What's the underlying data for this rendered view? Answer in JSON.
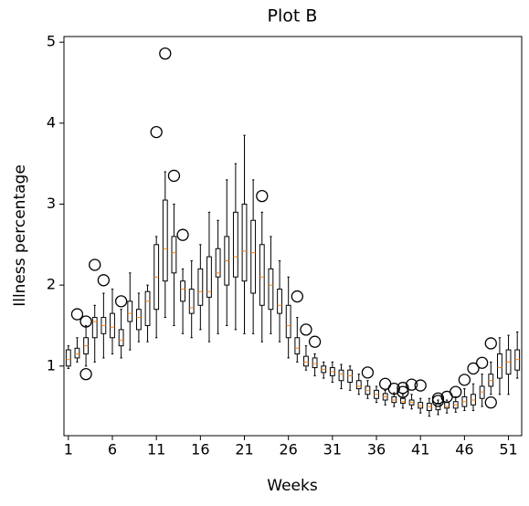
{
  "chart_data": {
    "type": "box",
    "title": "Plot B",
    "x_label": "Weeks",
    "y_label": "Illness percentage",
    "box_color": "#000000",
    "median_color": "#ff7f0e",
    "xlim": [
      0.5,
      52.5
    ],
    "xticks": [
      1,
      6,
      11,
      16,
      21,
      26,
      31,
      36,
      41,
      46,
      51
    ],
    "ylim": [
      0.14,
      5.07
    ],
    "yticks": [
      1,
      2,
      3,
      4,
      5
    ],
    "x": [
      1,
      2,
      3,
      4,
      5,
      6,
      7,
      8,
      9,
      10,
      11,
      12,
      13,
      14,
      15,
      16,
      17,
      18,
      19,
      20,
      21,
      22,
      23,
      24,
      25,
      26,
      27,
      28,
      29,
      30,
      31,
      32,
      33,
      34,
      35,
      36,
      37,
      38,
      39,
      40,
      41,
      42,
      43,
      44,
      45,
      46,
      47,
      48,
      49,
      50,
      51,
      52
    ],
    "boxes": [
      {
        "whislo": 0.97,
        "q1": 1.0,
        "med": 1.08,
        "q3": 1.2,
        "whishi": 1.25,
        "fliers": []
      },
      {
        "whislo": 1.05,
        "q1": 1.1,
        "med": 1.15,
        "q3": 1.22,
        "whishi": 1.35,
        "fliers": [
          1.64
        ]
      },
      {
        "whislo": 1.0,
        "q1": 1.15,
        "med": 1.25,
        "q3": 1.35,
        "whishi": 1.5,
        "fliers": [
          0.9,
          1.55
        ]
      },
      {
        "whislo": 1.05,
        "q1": 1.35,
        "med": 1.55,
        "q3": 1.6,
        "whishi": 1.75,
        "fliers": [
          2.25
        ]
      },
      {
        "whislo": 1.1,
        "q1": 1.4,
        "med": 1.5,
        "q3": 1.6,
        "whishi": 1.9,
        "fliers": [
          2.06
        ]
      },
      {
        "whislo": 1.15,
        "q1": 1.35,
        "med": 1.48,
        "q3": 1.65,
        "whishi": 1.95,
        "fliers": []
      },
      {
        "whislo": 1.1,
        "q1": 1.25,
        "med": 1.32,
        "q3": 1.45,
        "whishi": 1.7,
        "fliers": [
          1.8
        ]
      },
      {
        "whislo": 1.2,
        "q1": 1.55,
        "med": 1.65,
        "q3": 1.8,
        "whishi": 2.15,
        "fliers": []
      },
      {
        "whislo": 1.3,
        "q1": 1.45,
        "med": 1.6,
        "q3": 1.7,
        "whishi": 1.9,
        "fliers": []
      },
      {
        "whislo": 1.3,
        "q1": 1.5,
        "med": 1.8,
        "q3": 1.92,
        "whishi": 2.0,
        "fliers": []
      },
      {
        "whislo": 1.35,
        "q1": 1.7,
        "med": 2.1,
        "q3": 2.5,
        "whishi": 2.6,
        "fliers": [
          3.89
        ]
      },
      {
        "whislo": 1.6,
        "q1": 2.05,
        "med": 2.45,
        "q3": 3.05,
        "whishi": 3.4,
        "fliers": [
          4.86
        ]
      },
      {
        "whislo": 1.5,
        "q1": 2.15,
        "med": 2.4,
        "q3": 2.6,
        "whishi": 3.0,
        "fliers": [
          3.35
        ]
      },
      {
        "whislo": 1.4,
        "q1": 1.8,
        "med": 1.95,
        "q3": 2.05,
        "whishi": 2.2,
        "fliers": [
          2.62
        ]
      },
      {
        "whislo": 1.35,
        "q1": 1.65,
        "med": 1.72,
        "q3": 1.95,
        "whishi": 2.3,
        "fliers": []
      },
      {
        "whislo": 1.45,
        "q1": 1.75,
        "med": 1.92,
        "q3": 2.2,
        "whishi": 2.5,
        "fliers": []
      },
      {
        "whislo": 1.3,
        "q1": 1.85,
        "med": 1.92,
        "q3": 2.35,
        "whishi": 2.9,
        "fliers": []
      },
      {
        "whislo": 1.4,
        "q1": 2.1,
        "med": 2.15,
        "q3": 2.45,
        "whishi": 2.8,
        "fliers": []
      },
      {
        "whislo": 1.5,
        "q1": 2.0,
        "med": 2.3,
        "q3": 2.6,
        "whishi": 3.3,
        "fliers": []
      },
      {
        "whislo": 1.45,
        "q1": 2.1,
        "med": 2.35,
        "q3": 2.9,
        "whishi": 3.5,
        "fliers": []
      },
      {
        "whislo": 1.4,
        "q1": 2.05,
        "med": 2.42,
        "q3": 3.0,
        "whishi": 3.85,
        "fliers": []
      },
      {
        "whislo": 1.4,
        "q1": 1.9,
        "med": 2.4,
        "q3": 2.8,
        "whishi": 3.3,
        "fliers": []
      },
      {
        "whislo": 1.3,
        "q1": 1.75,
        "med": 2.1,
        "q3": 2.5,
        "whishi": 2.9,
        "fliers": [
          3.1
        ]
      },
      {
        "whislo": 1.4,
        "q1": 1.7,
        "med": 2.0,
        "q3": 2.2,
        "whishi": 2.6,
        "fliers": []
      },
      {
        "whislo": 1.3,
        "q1": 1.65,
        "med": 1.75,
        "q3": 1.95,
        "whishi": 2.3,
        "fliers": []
      },
      {
        "whislo": 1.1,
        "q1": 1.35,
        "med": 1.5,
        "q3": 1.75,
        "whishi": 2.1,
        "fliers": []
      },
      {
        "whislo": 1.05,
        "q1": 1.15,
        "med": 1.22,
        "q3": 1.35,
        "whishi": 1.6,
        "fliers": [
          1.86
        ]
      },
      {
        "whislo": 0.95,
        "q1": 1.0,
        "med": 1.05,
        "q3": 1.12,
        "whishi": 1.25,
        "fliers": [
          1.45
        ]
      },
      {
        "whislo": 0.88,
        "q1": 0.98,
        "med": 1.03,
        "q3": 1.1,
        "whishi": 1.15,
        "fliers": [
          1.3
        ]
      },
      {
        "whislo": 0.85,
        "q1": 0.92,
        "med": 0.96,
        "q3": 1.0,
        "whishi": 1.05,
        "fliers": []
      },
      {
        "whislo": 0.8,
        "q1": 0.88,
        "med": 0.93,
        "q3": 0.98,
        "whishi": 1.05,
        "fliers": []
      },
      {
        "whislo": 0.72,
        "q1": 0.82,
        "med": 0.9,
        "q3": 0.95,
        "whishi": 1.02,
        "fliers": []
      },
      {
        "whislo": 0.7,
        "q1": 0.8,
        "med": 0.88,
        "q3": 0.95,
        "whishi": 1.0,
        "fliers": []
      },
      {
        "whislo": 0.65,
        "q1": 0.72,
        "med": 0.75,
        "q3": 0.82,
        "whishi": 0.9,
        "fliers": []
      },
      {
        "whislo": 0.6,
        "q1": 0.65,
        "med": 0.7,
        "q3": 0.75,
        "whishi": 0.82,
        "fliers": [
          0.92
        ]
      },
      {
        "whislo": 0.55,
        "q1": 0.6,
        "med": 0.65,
        "q3": 0.7,
        "whishi": 0.75,
        "fliers": []
      },
      {
        "whislo": 0.52,
        "q1": 0.58,
        "med": 0.62,
        "q3": 0.66,
        "whishi": 0.7,
        "fliers": [
          0.78
        ]
      },
      {
        "whislo": 0.5,
        "q1": 0.55,
        "med": 0.58,
        "q3": 0.62,
        "whishi": 0.67,
        "fliers": [
          0.72
        ]
      },
      {
        "whislo": 0.48,
        "q1": 0.54,
        "med": 0.56,
        "q3": 0.6,
        "whishi": 0.65,
        "fliers": [
          0.68,
          0.73
        ]
      },
      {
        "whislo": 0.47,
        "q1": 0.52,
        "med": 0.55,
        "q3": 0.58,
        "whishi": 0.65,
        "fliers": [
          0.77
        ]
      },
      {
        "whislo": 0.42,
        "q1": 0.48,
        "med": 0.51,
        "q3": 0.55,
        "whishi": 0.6,
        "fliers": [
          0.76
        ]
      },
      {
        "whislo": 0.38,
        "q1": 0.45,
        "med": 0.5,
        "q3": 0.54,
        "whishi": 0.6,
        "fliers": []
      },
      {
        "whislo": 0.4,
        "q1": 0.46,
        "med": 0.5,
        "q3": 0.54,
        "whishi": 0.58,
        "fliers": [
          0.6,
          0.57
        ]
      },
      {
        "whislo": 0.42,
        "q1": 0.48,
        "med": 0.5,
        "q3": 0.55,
        "whishi": 0.58,
        "fliers": [
          0.62
        ]
      },
      {
        "whislo": 0.43,
        "q1": 0.48,
        "med": 0.52,
        "q3": 0.56,
        "whishi": 0.62,
        "fliers": [
          0.68
        ]
      },
      {
        "whislo": 0.45,
        "q1": 0.5,
        "med": 0.56,
        "q3": 0.62,
        "whishi": 0.72,
        "fliers": [
          0.83
        ]
      },
      {
        "whislo": 0.45,
        "q1": 0.52,
        "med": 0.58,
        "q3": 0.65,
        "whishi": 0.78,
        "fliers": [
          0.97
        ]
      },
      {
        "whislo": 0.5,
        "q1": 0.6,
        "med": 0.68,
        "q3": 0.75,
        "whishi": 0.9,
        "fliers": [
          1.04
        ]
      },
      {
        "whislo": 0.65,
        "q1": 0.75,
        "med": 0.82,
        "q3": 0.9,
        "whishi": 1.05,
        "fliers": [
          1.28,
          0.55
        ]
      },
      {
        "whislo": 0.65,
        "q1": 0.85,
        "med": 0.98,
        "q3": 1.15,
        "whishi": 1.35,
        "fliers": []
      },
      {
        "whislo": 0.65,
        "q1": 0.9,
        "med": 1.05,
        "q3": 1.2,
        "whishi": 1.38,
        "fliers": []
      },
      {
        "whislo": 0.85,
        "q1": 0.95,
        "med": 1.08,
        "q3": 1.2,
        "whishi": 1.42,
        "fliers": []
      }
    ]
  }
}
